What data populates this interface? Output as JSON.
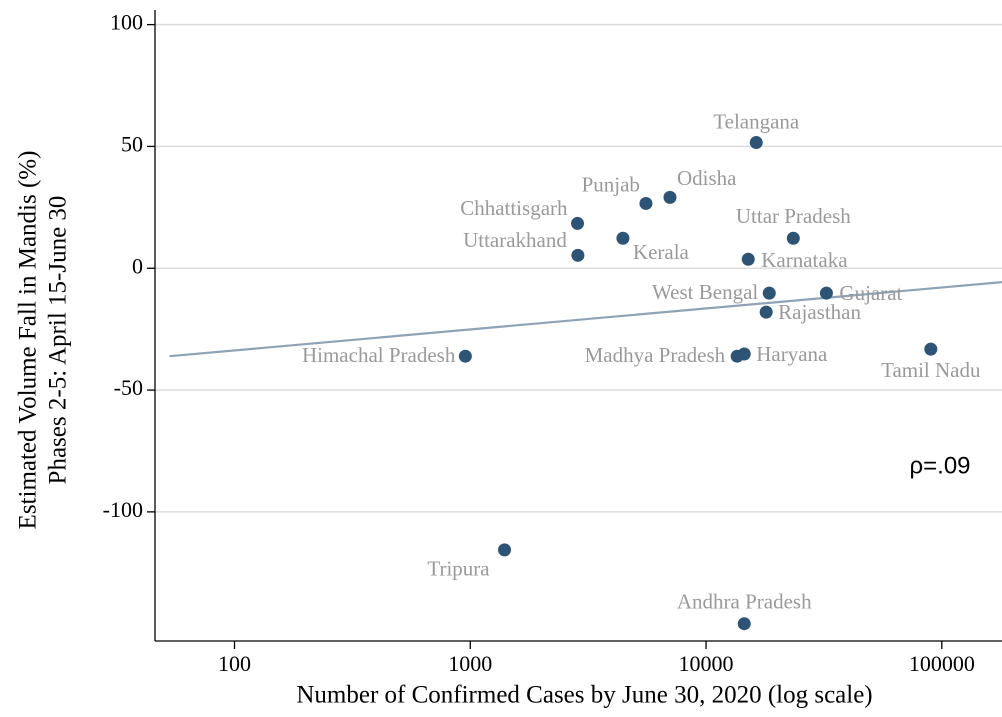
{
  "chart_data": {
    "type": "scatter",
    "xlabel": "Number of Confirmed Cases by June 30, 2020 (log scale)",
    "ylabel": [
      "Estimated Volume Fall in Mandis (%)",
      "Phases 2-5: April 15-June 30"
    ],
    "annotation": "ρ=.09",
    "xscale": "log",
    "grid": true,
    "color": "#2e5475",
    "xlim": [
      46,
      180000
    ],
    "ylim": [
      -153,
      106
    ],
    "xticks": [
      100,
      1000,
      10000,
      100000
    ],
    "yticks": [
      -100,
      -50,
      0,
      50,
      100
    ],
    "point_labels": [
      "Telangana",
      "Punjab",
      "Odisha",
      "Chhattisgarh",
      "Uttarakhand",
      "Kerala",
      "Uttar Pradesh",
      "Karnataka",
      "West Bengal",
      "Gujarat",
      "Rajasthan",
      "Himachal Pradesh",
      "Madhya Pradesh",
      "Haryana",
      "Tamil Nadu",
      "Tripura",
      "Andhra Pradesh"
    ],
    "x": [
      16330,
      5560,
      7030,
      2850,
      2860,
      4440,
      23450,
      15100,
      18540,
      32400,
      17990,
      953,
      13550,
      14520,
      89800,
      1397,
      14520
    ],
    "values": [
      51.6,
      26.6,
      29.1,
      18.4,
      5.3,
      12.3,
      12.3,
      3.7,
      -10.2,
      -10.2,
      -18.0,
      -36.1,
      -36.1,
      -35.2,
      -33.2,
      -115.6,
      -145.9
    ],
    "fit_line": {
      "color": "#8ea3b5",
      "x": [
        53,
        180000
      ],
      "y": [
        -36.1,
        -5.7
      ]
    }
  }
}
